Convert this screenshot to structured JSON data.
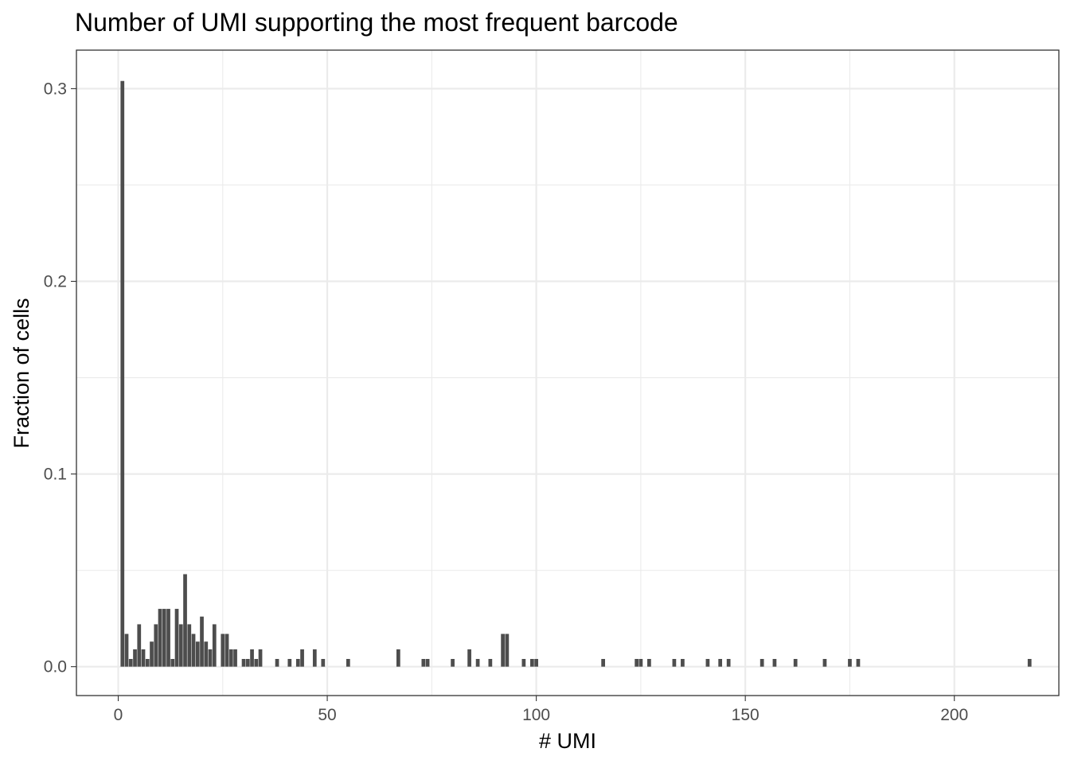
{
  "chart_data": {
    "type": "bar",
    "title": "Number of UMI supporting the most frequent barcode",
    "xlabel": "# UMI",
    "ylabel": "Fraction of cells",
    "xlim": [
      -10,
      225
    ],
    "ylim": [
      -0.015,
      0.32
    ],
    "xticks": [
      0,
      50,
      100,
      150,
      200
    ],
    "xtick_labels": [
      "0",
      "50",
      "100",
      "150",
      "200"
    ],
    "yticks": [
      0.0,
      0.1,
      0.2,
      0.3
    ],
    "ytick_labels": [
      "0.0",
      "0.1",
      "0.2",
      "0.3"
    ],
    "grid": true,
    "bar_color": "#4d4d4d",
    "x": [
      1,
      2,
      3,
      4,
      5,
      6,
      7,
      8,
      9,
      10,
      11,
      12,
      13,
      14,
      15,
      16,
      17,
      18,
      19,
      20,
      21,
      22,
      23,
      25,
      26,
      27,
      28,
      30,
      31,
      32,
      33,
      34,
      38,
      41,
      43,
      44,
      47,
      49,
      55,
      67,
      73,
      74,
      80,
      84,
      86,
      89,
      92,
      93,
      97,
      99,
      100,
      116,
      124,
      125,
      127,
      133,
      135,
      141,
      144,
      146,
      154,
      157,
      162,
      169,
      175,
      177,
      218
    ],
    "values": [
      0.304,
      0.017,
      0.004,
      0.009,
      0.022,
      0.009,
      0.004,
      0.013,
      0.022,
      0.03,
      0.03,
      0.03,
      0.004,
      0.03,
      0.022,
      0.048,
      0.022,
      0.017,
      0.013,
      0.026,
      0.013,
      0.009,
      0.022,
      0.017,
      0.017,
      0.009,
      0.009,
      0.004,
      0.004,
      0.009,
      0.004,
      0.009,
      0.004,
      0.004,
      0.004,
      0.009,
      0.009,
      0.004,
      0.004,
      0.009,
      0.004,
      0.004,
      0.004,
      0.009,
      0.004,
      0.004,
      0.017,
      0.017,
      0.004,
      0.004,
      0.004,
      0.004,
      0.004,
      0.004,
      0.004,
      0.004,
      0.004,
      0.004,
      0.004,
      0.004,
      0.004,
      0.004,
      0.004,
      0.004,
      0.004,
      0.004,
      0.004
    ]
  }
}
